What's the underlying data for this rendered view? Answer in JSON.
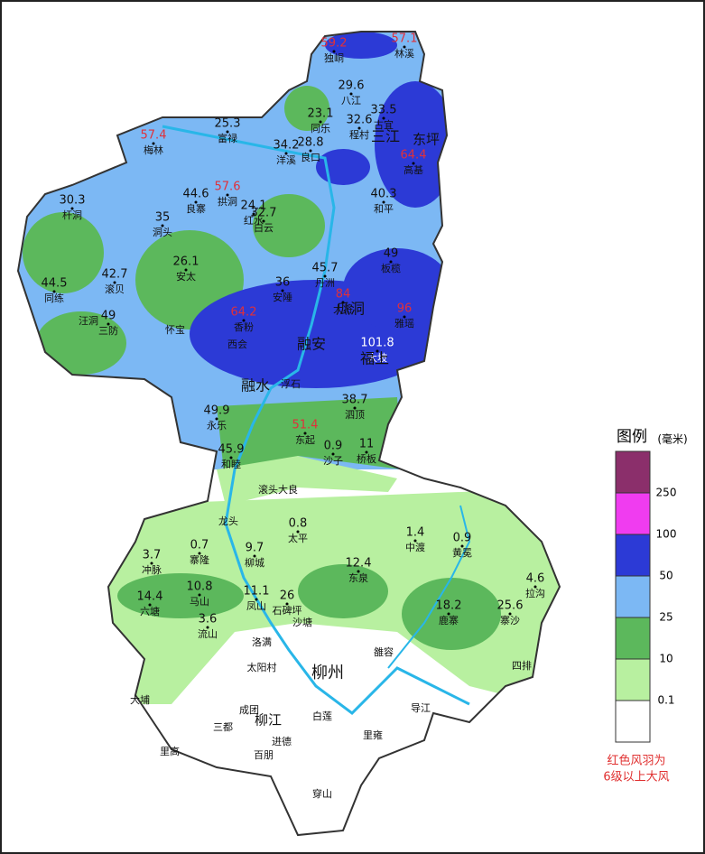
{
  "stations": [
    {
      "name": "独峒",
      "value": 59.2,
      "highlight": true
    },
    {
      "name": "林溪",
      "value": 57.1,
      "highlight": true
    },
    {
      "name": "八江",
      "value": 29.6,
      "highlight": false
    },
    {
      "name": "同乐",
      "value": 23.1,
      "highlight": false
    },
    {
      "name": "古宜",
      "value": 33.5,
      "highlight": false
    },
    {
      "name": "程村",
      "value": 32.6,
      "highlight": false
    },
    {
      "name": "高基",
      "value": 64.4,
      "highlight": true
    },
    {
      "name": "梅林",
      "value": 57.4,
      "highlight": true
    },
    {
      "name": "富禄",
      "value": 25.3,
      "highlight": false
    },
    {
      "name": "洋溪",
      "value": 34.2,
      "highlight": false
    },
    {
      "name": "良口",
      "value": 28.8,
      "highlight": false
    },
    {
      "name": "良寨",
      "value": 44.6,
      "highlight": false
    },
    {
      "name": "拱洞",
      "value": 57.6,
      "highlight": true
    },
    {
      "name": "红水",
      "value": 24.1,
      "highlight": false
    },
    {
      "name": "白云",
      "value": 32.7,
      "highlight": false
    },
    {
      "name": "杆洞",
      "value": 30.3,
      "highlight": false
    },
    {
      "name": "洞头",
      "value": 35,
      "highlight": false
    },
    {
      "name": "和平",
      "value": 40.3,
      "highlight": false
    },
    {
      "name": "板榄",
      "value": 49,
      "highlight": false
    },
    {
      "name": "安太",
      "value": 26.1,
      "highlight": false
    },
    {
      "name": "滚贝",
      "value": 42.7,
      "highlight": false
    },
    {
      "name": "安陲",
      "value": 36,
      "highlight": false
    },
    {
      "name": "丹洲",
      "value": 45.7,
      "highlight": false
    },
    {
      "name": "同练",
      "value": 44.5,
      "highlight": false
    },
    {
      "name": "三防",
      "value": 49,
      "highlight": false
    },
    {
      "name": "香粉",
      "value": 64.2,
      "highlight": true
    },
    {
      "name": "大将",
      "value": 84,
      "highlight": true
    },
    {
      "name": "雅瑶",
      "value": 96,
      "highlight": true
    },
    {
      "name": "大坡",
      "value": 101.8,
      "highlight": false
    },
    {
      "name": "永乐",
      "value": 49.9,
      "highlight": false
    },
    {
      "name": "泗顶",
      "value": 38.7,
      "highlight": false
    },
    {
      "name": "东起",
      "value": 51.4,
      "highlight": true
    },
    {
      "name": "沙子",
      "value": 0.9,
      "highlight": false
    },
    {
      "name": "桥板",
      "value": 11,
      "highlight": false
    },
    {
      "name": "和睦",
      "value": 45.9,
      "highlight": false
    },
    {
      "name": "太平",
      "value": 0.8,
      "highlight": false
    },
    {
      "name": "中渡",
      "value": 1.4,
      "highlight": false
    },
    {
      "name": "黄冕",
      "value": 0.9,
      "highlight": false
    },
    {
      "name": "东泉",
      "value": 12.4,
      "highlight": false
    },
    {
      "name": "冲脉",
      "value": 3.7,
      "highlight": false
    },
    {
      "name": "寨隆",
      "value": 0.7,
      "highlight": false
    },
    {
      "name": "柳城",
      "value": 9.7,
      "highlight": false
    },
    {
      "name": "马山",
      "value": 10.8,
      "highlight": false
    },
    {
      "name": "六塘",
      "value": 14.4,
      "highlight": false
    },
    {
      "name": "凤山",
      "value": 11.1,
      "highlight": false
    },
    {
      "name": "石碑坪",
      "value": 26,
      "highlight": false
    },
    {
      "name": "鹿寨",
      "value": 18.2,
      "highlight": false
    },
    {
      "name": "寨沙",
      "value": 25.6,
      "highlight": false
    },
    {
      "name": "拉沟",
      "value": 4.6,
      "highlight": false
    },
    {
      "name": "流山",
      "value": 3.6,
      "highlight": false
    }
  ],
  "places": [
    "三江",
    "东坪",
    "汪洞",
    "怀宝",
    "西会",
    "瓜洞",
    "融安",
    "福上",
    "融水",
    "浮石",
    "滚头大良",
    "龙头",
    "沙塘",
    "洛满",
    "太阳村",
    "雒容",
    "柳州",
    "大埔",
    "三都",
    "成团",
    "柳江",
    "百朋",
    "白莲",
    "里雍",
    "导江",
    "穿山",
    "里高",
    "进德",
    "四排"
  ],
  "legend": {
    "title": "图例",
    "unit": "(毫米)",
    "levels": [
      {
        "value": 250,
        "color": "#8b2f6b"
      },
      {
        "value": 100,
        "color": "#f03cf0"
      },
      {
        "value": 50,
        "color": "#2c3ad6"
      },
      {
        "value": 25,
        "color": "#7cb8f4"
      },
      {
        "value": 10,
        "color": "#5cb85c"
      },
      {
        "value": 0.1,
        "color": "#b8f0a0"
      }
    ],
    "base_color": "#ffffff",
    "note": [
      "红色风羽为",
      "6级以上大风"
    ]
  }
}
